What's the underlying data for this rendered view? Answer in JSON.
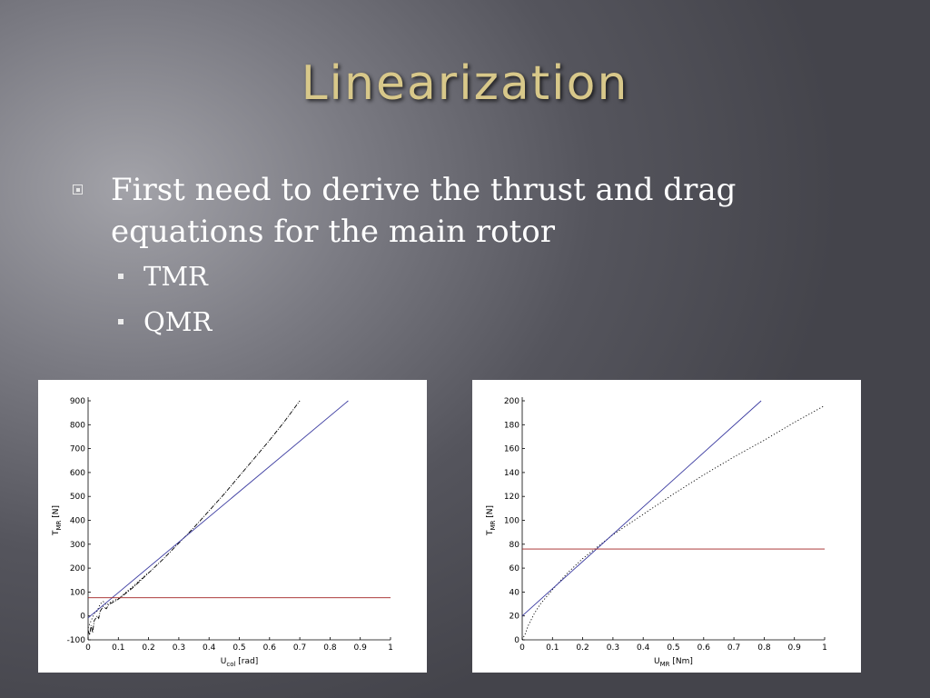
{
  "slide": {
    "title": "Linearization",
    "bullets": [
      {
        "text": "First need to derive the thrust and drag equations for the main rotor",
        "sub": [
          "TMR",
          "QMR"
        ]
      }
    ]
  },
  "chart_data": [
    {
      "type": "line",
      "title": "",
      "xlabel": "U",
      "xlabel_sub": "col",
      "xlabel_unit": " [rad]",
      "ylabel": "T",
      "ylabel_sub": "MR",
      "ylabel_unit": " [N]",
      "xlim": [
        0,
        1
      ],
      "ylim": [
        -100,
        900
      ],
      "xticks": [
        0,
        0.1,
        0.2,
        0.3,
        0.4,
        0.5,
        0.6,
        0.7,
        0.8,
        0.9,
        1
      ],
      "yticks": [
        -100,
        0,
        100,
        200,
        300,
        400,
        500,
        600,
        700,
        800,
        900
      ],
      "grid": false,
      "series": [
        {
          "style": "dashdot",
          "color": "#000000",
          "x": [
            0,
            0.005,
            0.01,
            0.015,
            0.02,
            0.03,
            0.035,
            0.04,
            0.05,
            0.06,
            0.07,
            0.08,
            0.1,
            0.15,
            0.2,
            0.25,
            0.3,
            0.35,
            0.4,
            0.45,
            0.5,
            0.55,
            0.6,
            0.65,
            0.7
          ],
          "y": [
            -60,
            -80,
            -40,
            -70,
            -20,
            0,
            -10,
            20,
            40,
            30,
            50,
            55,
            70,
            120,
            180,
            240,
            305,
            370,
            440,
            510,
            585,
            660,
            735,
            815,
            900
          ]
        },
        {
          "style": "dotted",
          "color": "#000000",
          "x": [
            0,
            0.01,
            0.02,
            0.03,
            0.04,
            0.05,
            0.06,
            0.08,
            0.1,
            0.15,
            0.2
          ],
          "y": [
            -50,
            -20,
            10,
            20,
            50,
            60,
            45,
            62,
            72,
            125,
            182
          ]
        },
        {
          "style": "solid",
          "color": "#3a3aa0",
          "x": [
            0,
            0.86
          ],
          "y": [
            -8,
            900
          ]
        },
        {
          "style": "solid",
          "color": "#a02020",
          "x": [
            0,
            1
          ],
          "y": [
            76,
            76
          ]
        }
      ]
    },
    {
      "type": "line",
      "title": "",
      "xlabel": "U",
      "xlabel_sub": "MR",
      "xlabel_unit": " [Nm]",
      "ylabel": "T",
      "ylabel_sub": "MR",
      "ylabel_unit": " [N]",
      "xlim": [
        0,
        1
      ],
      "ylim": [
        0,
        200
      ],
      "xticks": [
        0,
        0.1,
        0.2,
        0.3,
        0.4,
        0.5,
        0.6,
        0.7,
        0.8,
        0.9,
        1
      ],
      "yticks": [
        0,
        20,
        40,
        60,
        80,
        100,
        120,
        140,
        160,
        180,
        200
      ],
      "grid": false,
      "series": [
        {
          "style": "dotted",
          "color": "#000000",
          "x": [
            0,
            0.01,
            0.02,
            0.04,
            0.06,
            0.1,
            0.15,
            0.2,
            0.25,
            0.3,
            0.4,
            0.5,
            0.6,
            0.7,
            0.8,
            0.9,
            1.0
          ],
          "y": [
            0,
            5,
            12,
            22,
            30,
            42,
            56,
            68,
            78,
            88,
            105,
            122,
            138,
            153,
            167,
            182,
            196
          ]
        },
        {
          "style": "solid",
          "color": "#3a3aa0",
          "x": [
            0,
            0.79
          ],
          "y": [
            20,
            200
          ]
        },
        {
          "style": "solid",
          "color": "#a02020",
          "x": [
            0,
            1
          ],
          "y": [
            76,
            76
          ]
        }
      ]
    }
  ]
}
